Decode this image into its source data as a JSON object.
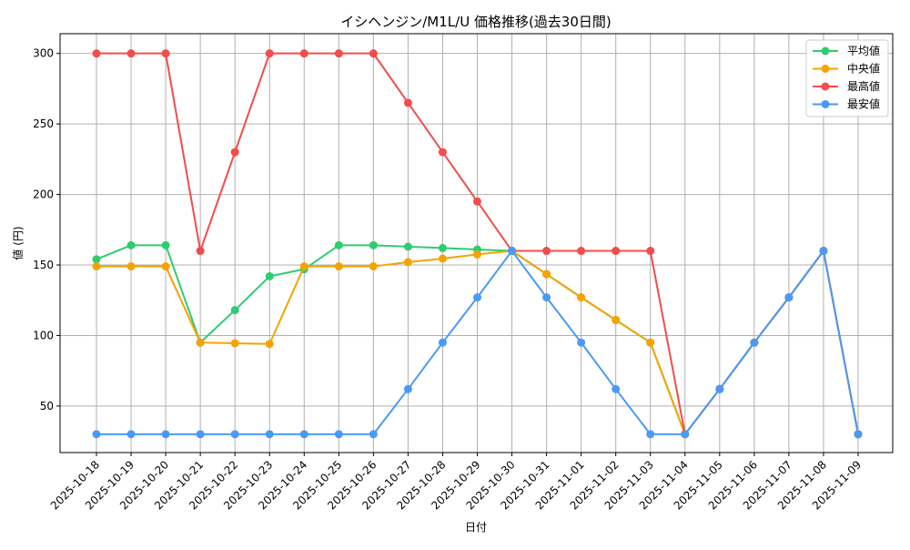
{
  "chart_data": {
    "type": "line",
    "title": "イシヘンジン/M1L/U 価格推移(過去30日間)",
    "xlabel": "日付",
    "ylabel": "値 (円)",
    "ylim": [
      17,
      314
    ],
    "yticks": [
      50,
      100,
      150,
      200,
      250,
      300
    ],
    "grid": true,
    "legend_position": "top-right",
    "x": [
      "2025-10-18",
      "2025-10-19",
      "2025-10-20",
      "2025-10-21",
      "2025-10-22",
      "2025-10-23",
      "2025-10-24",
      "2025-10-25",
      "2025-10-26",
      "2025-10-27",
      "2025-10-28",
      "2025-10-29",
      "2025-10-30",
      "2025-10-31",
      "2025-11-01",
      "2025-11-02",
      "2025-11-03",
      "2025-11-04",
      "2025-11-05",
      "2025-11-06",
      "2025-11-07",
      "2025-11-08",
      "2025-11-09"
    ],
    "series": [
      {
        "name": "平均値",
        "color": "#2ecc71",
        "values": [
          154,
          164,
          164,
          95,
          118,
          142,
          147,
          164,
          164,
          163,
          162,
          161,
          160,
          143.5,
          127,
          111,
          95,
          30,
          62,
          95,
          127,
          160,
          30
        ]
      },
      {
        "name": "中央値",
        "color": "#f5a300",
        "values": [
          149,
          149,
          149,
          95,
          94.5,
          94,
          149,
          149,
          149,
          152,
          154.5,
          157.5,
          160,
          143.5,
          127,
          111,
          95,
          30,
          62,
          95,
          127,
          160,
          30
        ]
      },
      {
        "name": "最高値",
        "color": "#f44b4b",
        "values": [
          300,
          300,
          300,
          160,
          230,
          300,
          300,
          300,
          300,
          265,
          230,
          195,
          160,
          160,
          160,
          160,
          160,
          30,
          62,
          95,
          127,
          160,
          30
        ]
      },
      {
        "name": "最安値",
        "color": "#4a9af5",
        "values": [
          30,
          30,
          30,
          30,
          30,
          30,
          30,
          30,
          30,
          62,
          95,
          127,
          160,
          127,
          95,
          62,
          30,
          30,
          62,
          95,
          127,
          160,
          30
        ]
      }
    ]
  }
}
